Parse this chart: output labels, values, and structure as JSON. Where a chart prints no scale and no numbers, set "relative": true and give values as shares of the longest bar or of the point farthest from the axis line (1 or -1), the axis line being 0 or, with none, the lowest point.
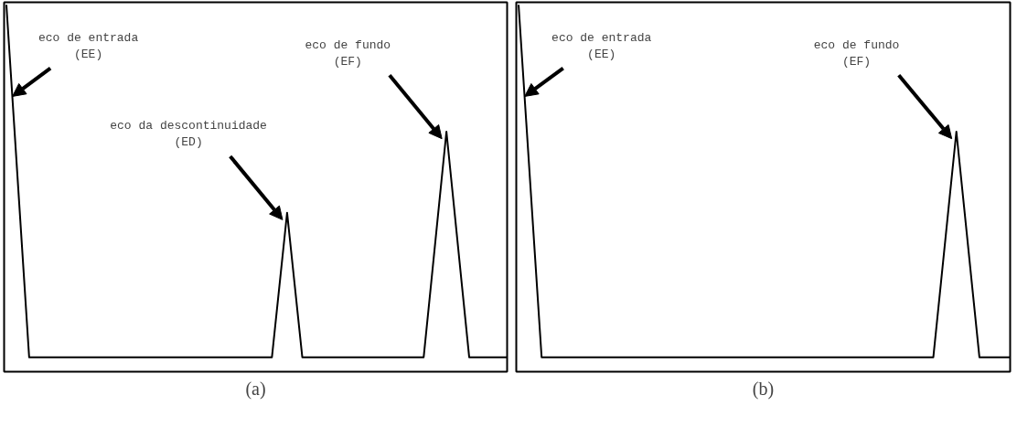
{
  "chart_data": [
    {
      "type": "line",
      "title": "(a)",
      "relative": true,
      "tick_labels": false,
      "grid": false,
      "color": "#000000",
      "categories": [
        null,
        null,
        null,
        null,
        null,
        null,
        null,
        null,
        null,
        null,
        null,
        null,
        null,
        null,
        null,
        null,
        null,
        null,
        null,
        null,
        null,
        null,
        null,
        null,
        null,
        null,
        null,
        null,
        null,
        null,
        null,
        null,
        null,
        null,
        null,
        null,
        null,
        null,
        null,
        null,
        null,
        null,
        null,
        null,
        null,
        null,
        null,
        null,
        null,
        null,
        null,
        null,
        null,
        null,
        null,
        null,
        null,
        null,
        null,
        null,
        null,
        null,
        null,
        null,
        null,
        null,
        null
      ],
      "values": [
        1,
        0.667,
        0.333,
        0,
        0,
        0,
        0,
        0,
        0,
        0,
        0,
        0,
        0,
        0,
        0,
        0,
        0,
        0,
        0,
        0,
        0,
        0,
        0,
        0,
        0,
        0,
        0,
        0,
        0,
        0,
        0,
        0,
        0,
        0,
        0,
        0,
        0.205,
        0.41,
        0.205,
        0,
        0,
        0,
        0,
        0,
        0,
        0,
        0,
        0,
        0,
        0,
        0,
        0,
        0,
        0,
        0,
        0,
        0.213,
        0.427,
        0.64,
        0.427,
        0.213,
        0,
        0,
        0,
        0,
        0,
        0
      ],
      "annotations": [
        "eco de entrada\n(EE)",
        "eco da descontinuidade\n(ED)",
        "eco de fundo\n(EF)"
      ]
    },
    {
      "type": "line",
      "title": "(b)",
      "relative": true,
      "tick_labels": false,
      "grid": false,
      "color": "#000000",
      "categories": [
        null,
        null,
        null,
        null,
        null,
        null,
        null,
        null,
        null,
        null,
        null,
        null,
        null,
        null,
        null,
        null,
        null,
        null,
        null,
        null,
        null,
        null,
        null,
        null,
        null,
        null,
        null,
        null,
        null,
        null,
        null,
        null,
        null,
        null,
        null,
        null,
        null,
        null,
        null,
        null,
        null,
        null,
        null,
        null,
        null,
        null,
        null,
        null,
        null,
        null,
        null,
        null,
        null,
        null,
        null,
        null,
        null,
        null,
        null,
        null,
        null,
        null,
        null,
        null,
        null
      ],
      "values": [
        1,
        0.667,
        0.333,
        0,
        0,
        0,
        0,
        0,
        0,
        0,
        0,
        0,
        0,
        0,
        0,
        0,
        0,
        0,
        0,
        0,
        0,
        0,
        0,
        0,
        0,
        0,
        0,
        0,
        0,
        0,
        0,
        0,
        0,
        0,
        0,
        0,
        0,
        0,
        0,
        0,
        0,
        0,
        0,
        0,
        0,
        0,
        0,
        0,
        0,
        0,
        0,
        0,
        0,
        0,
        0,
        0.213,
        0.427,
        0.64,
        0.427,
        0.213,
        0,
        0,
        0,
        0,
        0
      ],
      "annotations": [
        "eco de entrada\n(EE)",
        "eco de fundo\n(EF)"
      ]
    }
  ]
}
